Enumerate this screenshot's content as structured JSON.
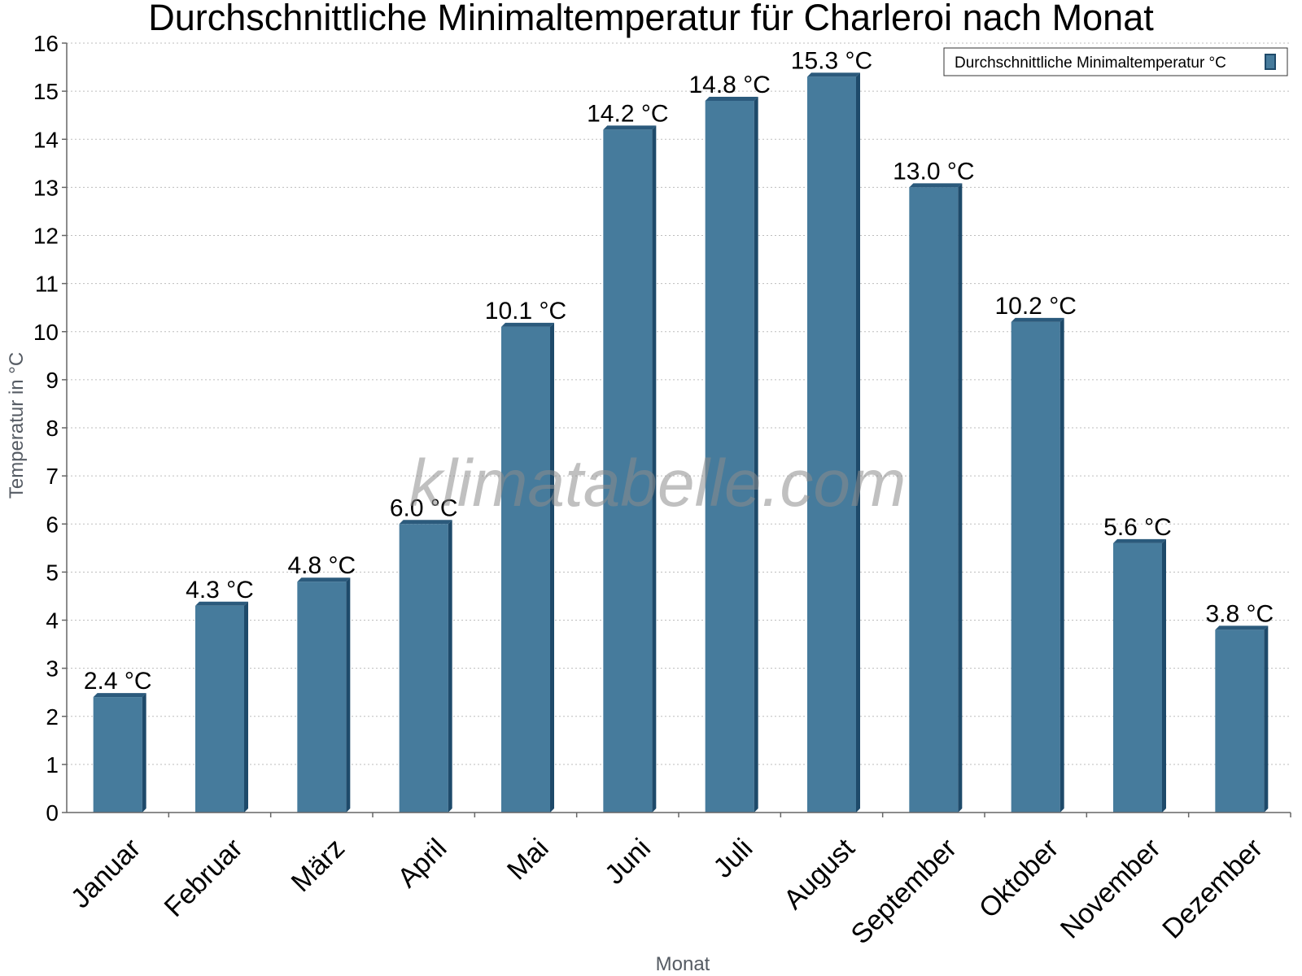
{
  "chart_data": {
    "type": "bar",
    "title": "Durchschnittliche Minimaltemperatur für Charleroi nach Monat",
    "xlabel": "Monat",
    "ylabel": "Temperatur in °C",
    "categories": [
      "Januar",
      "Februar",
      "März",
      "April",
      "Mai",
      "Juni",
      "Juli",
      "August",
      "September",
      "Oktober",
      "November",
      "Dezember"
    ],
    "series": [
      {
        "name": "Durchschnittliche Minimaltemperatur °C",
        "values": [
          2.4,
          4.3,
          4.8,
          6.0,
          10.1,
          14.2,
          14.8,
          15.3,
          13.0,
          10.2,
          5.6,
          3.8
        ],
        "labels": [
          "2.4 °C",
          "4.3 °C",
          "4.8 °C",
          "6.0 °C",
          "10.1 °C",
          "14.2 °C",
          "14.8 °C",
          "15.3 °C",
          "13.0 °C",
          "10.2 °C",
          "5.6 °C",
          "3.8 °C"
        ]
      }
    ],
    "ylim": [
      0,
      16
    ],
    "yticks": [
      "0",
      "1",
      "2",
      "3",
      "4",
      "5",
      "6",
      "7",
      "8",
      "9",
      "10",
      "11",
      "12",
      "13",
      "14",
      "15",
      "16"
    ],
    "grid": true,
    "legend_position": "top-right",
    "watermark": "klimatabelle.com",
    "colors": {
      "bar_front": "#467b9c",
      "bar_side": "#1e4a6a",
      "bar_top": "#2b5a7c"
    }
  }
}
